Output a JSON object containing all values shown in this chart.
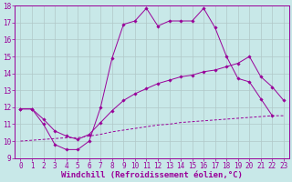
{
  "line1_x": [
    0,
    1,
    2,
    3,
    4,
    5,
    6,
    7,
    8,
    9,
    10,
    11,
    12,
    13,
    14,
    15,
    16,
    17,
    18,
    19,
    20,
    21,
    22
  ],
  "line1_y": [
    11.9,
    11.9,
    11.0,
    9.8,
    9.5,
    9.5,
    10.0,
    12.0,
    14.9,
    16.9,
    17.1,
    17.85,
    16.8,
    17.1,
    17.1,
    17.1,
    17.85,
    16.7,
    15.0,
    13.7,
    13.5,
    12.5,
    11.5
  ],
  "line2_x": [
    0,
    1,
    2,
    3,
    4,
    5,
    6,
    7,
    8,
    9,
    10,
    11,
    12,
    13,
    14,
    15,
    16,
    17,
    18,
    19,
    20,
    21,
    22,
    23
  ],
  "line2_y": [
    11.9,
    11.9,
    11.3,
    10.6,
    10.3,
    10.1,
    10.4,
    11.1,
    11.8,
    12.4,
    12.8,
    13.1,
    13.4,
    13.6,
    13.8,
    13.9,
    14.1,
    14.2,
    14.4,
    14.6,
    15.0,
    13.8,
    13.2,
    12.4
  ],
  "line3_x": [
    0,
    1,
    2,
    3,
    4,
    5,
    6,
    7,
    8,
    9,
    10,
    11,
    12,
    13,
    14,
    15,
    16,
    17,
    18,
    19,
    20,
    21,
    22,
    23
  ],
  "line3_y": [
    10.0,
    10.05,
    10.1,
    10.15,
    10.2,
    10.2,
    10.3,
    10.4,
    10.55,
    10.65,
    10.75,
    10.85,
    10.95,
    11.0,
    11.1,
    11.15,
    11.2,
    11.25,
    11.3,
    11.35,
    11.4,
    11.45,
    11.5,
    11.5
  ],
  "line_color": "#990099",
  "bg_color": "#c8e8e8",
  "grid_color": "#b0c8c8",
  "xlim": [
    -0.5,
    23.5
  ],
  "ylim": [
    9,
    18
  ],
  "xlabel": "Windchill (Refroidissement éolien,°C)",
  "xtick_vals": [
    0,
    1,
    2,
    3,
    4,
    5,
    6,
    7,
    8,
    9,
    10,
    11,
    12,
    13,
    14,
    15,
    16,
    17,
    18,
    19,
    20,
    21,
    22,
    23
  ],
  "xtick_labels": [
    "0",
    "1",
    "2",
    "3",
    "4",
    "5",
    "6",
    "7",
    "8",
    "9",
    "10",
    "11",
    "12",
    "13",
    "14",
    "15",
    "16",
    "17",
    "18",
    "19",
    "20",
    "21",
    "22",
    "23"
  ],
  "ytick_vals": [
    9,
    10,
    11,
    12,
    13,
    14,
    15,
    16,
    17,
    18
  ],
  "ytick_labels": [
    "9",
    "10",
    "11",
    "12",
    "13",
    "14",
    "15",
    "16",
    "17",
    "18"
  ],
  "xlabel_fontsize": 6.5,
  "tick_fontsize": 5.5
}
